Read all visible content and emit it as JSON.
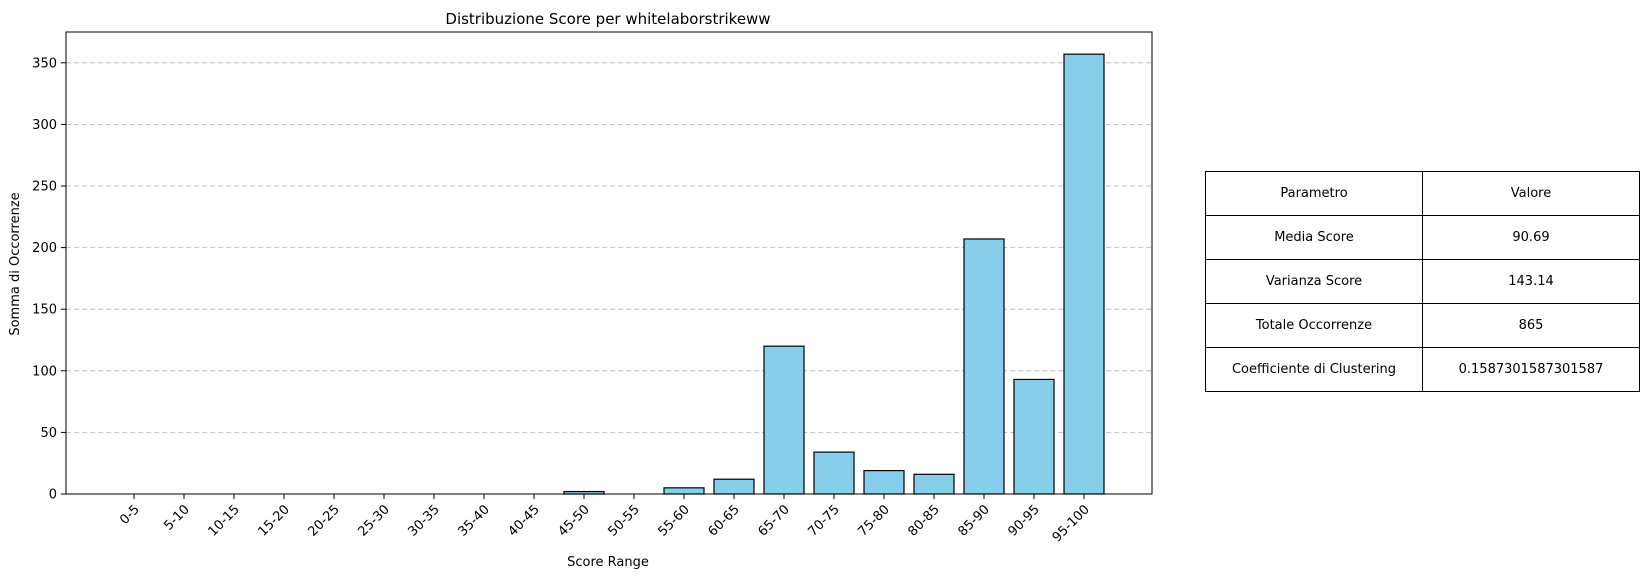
{
  "chart_data": {
    "type": "bar",
    "title": "Distribuzione Score per whitelaborstrikeww",
    "xlabel": "Score Range",
    "ylabel": "Somma di Occorrenze",
    "categories": [
      "0-5",
      "5-10",
      "10-15",
      "15-20",
      "20-25",
      "25-30",
      "30-35",
      "35-40",
      "40-45",
      "45-50",
      "50-55",
      "55-60",
      "60-65",
      "65-70",
      "70-75",
      "75-80",
      "80-85",
      "85-90",
      "90-95",
      "95-100"
    ],
    "values": [
      0,
      0,
      0,
      0,
      0,
      0,
      0,
      0,
      0,
      2,
      0,
      5,
      12,
      120,
      34,
      19,
      16,
      207,
      93,
      357
    ],
    "ylim": [
      0,
      375
    ],
    "yticks": [
      0,
      50,
      100,
      150,
      200,
      250,
      300,
      350
    ],
    "grid": "horizontal dashed",
    "bar_color": "#87ceeb",
    "bar_edge_color": "#000000"
  },
  "table": {
    "header": [
      "Parametro",
      "Valore"
    ],
    "rows": [
      [
        "Media Score",
        "90.69"
      ],
      [
        "Varianza Score",
        "143.14"
      ],
      [
        "Totale Occorrenze",
        "865"
      ],
      [
        "Coefficiente di Clustering",
        "0.1587301587301587"
      ]
    ]
  }
}
